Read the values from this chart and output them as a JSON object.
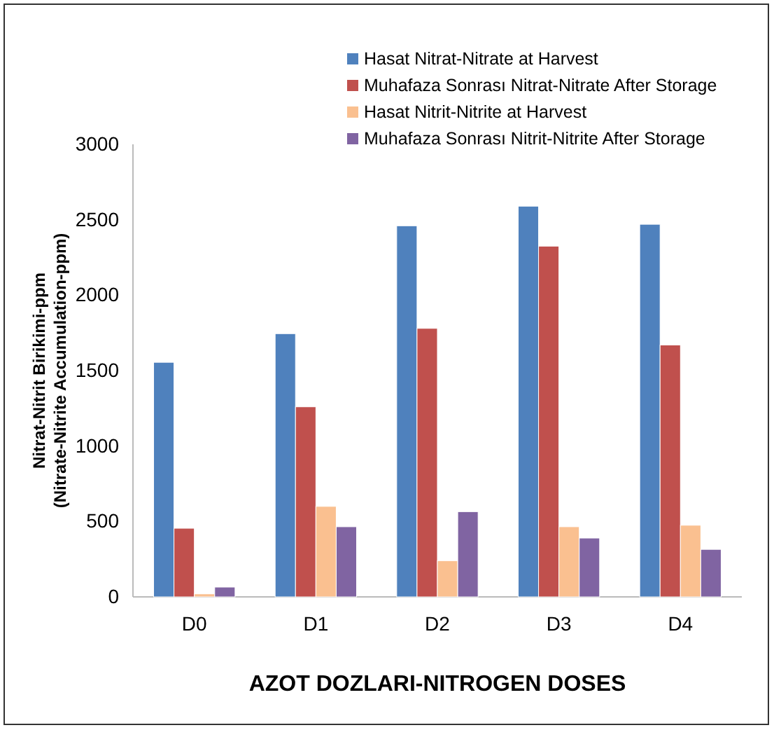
{
  "chart_data": {
    "type": "bar",
    "xlabel": "AZOT DOZLARI-NITROGEN DOSES",
    "ylabel": "Nitrat-Nitrit Birikimi-ppm\n(Nitrate-Nitrite Accumulation-ppm)",
    "categories": [
      "D0",
      "D1",
      "D2",
      "D3",
      "D4"
    ],
    "series": [
      {
        "name": "Hasat Nitrat-Nitrate at Harvest",
        "color": "#4f81bd",
        "values": [
          1555,
          1745,
          2460,
          2590,
          2470
        ]
      },
      {
        "name": "Muhafaza Sonrası Nitrat-Nitrate After Storage",
        "color": "#c0504d",
        "values": [
          455,
          1260,
          1780,
          2325,
          1670
        ]
      },
      {
        "name": "Hasat Nitrit-Nitrite at Harvest",
        "color": "#fac090",
        "values": [
          20,
          600,
          240,
          465,
          475
        ]
      },
      {
        "name": "Muhafaza Sonrası Nitrit-Nitrite After Storage",
        "color": "#8064a2",
        "values": [
          65,
          465,
          565,
          390,
          315
        ]
      }
    ],
    "ylim": [
      0,
      3000
    ],
    "yticks": [
      0,
      500,
      1000,
      1500,
      2000,
      2500,
      3000
    ],
    "legend": "top right"
  }
}
